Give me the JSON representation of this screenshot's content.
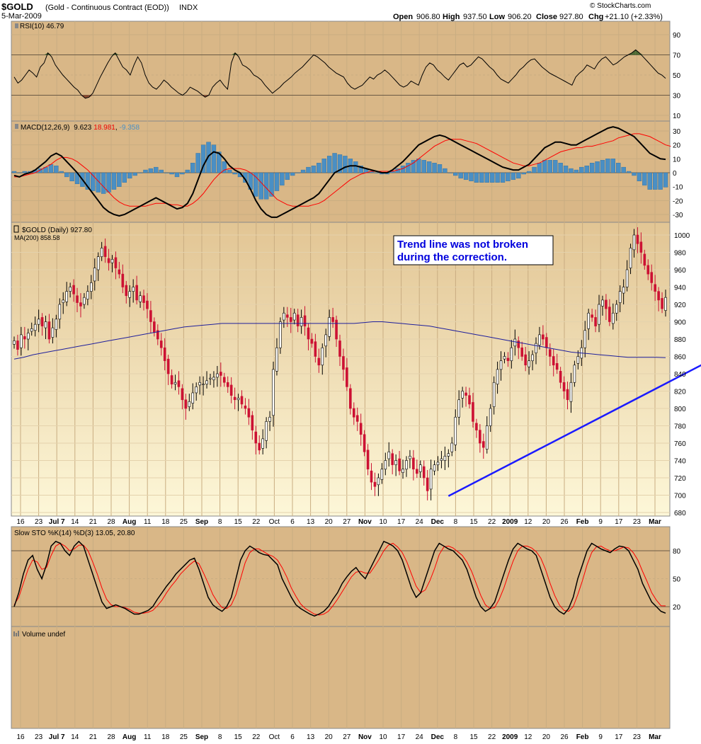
{
  "header": {
    "symbol": "$GOLD",
    "name": "(Gold - Continuous Contract (EOD))",
    "exchange": "INDX",
    "date": "5-Mar-2009",
    "open_label": "Open",
    "open": "906.80",
    "high_label": "High",
    "high": "937.50",
    "low_label": "Low",
    "low": "906.20",
    "close_label": "Close",
    "close": "927.80",
    "chg_label": "Chg",
    "chg": "+21.10 (+2.33%)",
    "credit": "© StockCharts.com"
  },
  "colors": {
    "panel_bg": "#d9b787",
    "price_bg_top": "#e6cfa0",
    "price_bg_bottom": "#fbf4d2",
    "up_candle": "#ffffff",
    "down_candle": "#cc1133",
    "ma200": "#1f1f9c",
    "trendline": "#1a1aff",
    "macd_line": "#000000",
    "signal_line": "#ff0000",
    "histogram": "#4a8fc4",
    "rsi_overbought_fill": "#4d6b35",
    "rsi_oversold_fill": "#8a4a30"
  },
  "chart_data": {
    "type": "candlestick",
    "x_tick_labels": [
      "16",
      "23",
      "Jul 7",
      "14",
      "21",
      "28",
      "Aug",
      "11",
      "18",
      "25",
      "Sep",
      "8",
      "15",
      "22",
      "Oct",
      "6",
      "13",
      "20",
      "27",
      "Nov",
      "10",
      "17",
      "24",
      "Dec",
      "8",
      "15",
      "22",
      "2009",
      "12",
      "20",
      "26",
      "Feb",
      "9",
      "17",
      "23",
      "Mar"
    ],
    "price": {
      "legend": "$GOLD (Daily) 927.80",
      "ma_legend": "MA(200) 858.58",
      "y_ticks": [
        680,
        700,
        720,
        740,
        760,
        780,
        800,
        820,
        840,
        860,
        880,
        900,
        920,
        940,
        960,
        980,
        1000
      ],
      "ylim": [
        672,
        1012
      ],
      "closes": [
        878,
        868,
        885,
        880,
        887,
        892,
        897,
        903,
        895,
        900,
        880,
        893,
        903,
        920,
        925,
        935,
        940,
        932,
        922,
        918,
        928,
        935,
        945,
        962,
        975,
        985,
        975,
        968,
        972,
        962,
        955,
        940,
        930,
        935,
        940,
        925,
        930,
        922,
        915,
        900,
        888,
        880,
        870,
        855,
        840,
        828,
        830,
        825,
        810,
        800,
        808,
        818,
        825,
        830,
        828,
        832,
        835,
        836,
        840,
        838,
        830,
        825,
        815,
        810,
        812,
        805,
        800,
        790,
        775,
        760,
        752,
        765,
        785,
        790,
        845,
        870,
        900,
        910,
        905,
        900,
        910,
        895,
        905,
        895,
        880,
        875,
        860,
        850,
        870,
        885,
        905,
        900,
        880,
        860,
        845,
        825,
        800,
        790,
        785,
        770,
        750,
        730,
        715,
        710,
        720,
        730,
        740,
        750,
        735,
        740,
        728,
        730,
        740,
        745,
        730,
        725,
        735,
        720,
        705,
        730,
        735,
        738,
        742,
        745,
        748,
        760,
        790,
        810,
        820,
        815,
        805,
        785,
        775,
        760,
        755,
        780,
        800,
        830,
        845,
        855,
        860,
        855,
        870,
        880,
        870,
        860,
        850,
        855,
        862,
        875,
        885,
        880,
        870,
        860,
        850,
        845,
        830,
        820,
        810,
        830,
        850,
        860,
        870,
        890,
        910,
        905,
        895,
        920,
        925,
        915,
        900,
        910,
        920,
        935,
        940,
        960,
        985,
        1000,
        990,
        980,
        965,
        955,
        945,
        935,
        925,
        915,
        928
      ],
      "ma200": [
        857,
        859,
        862,
        864,
        866,
        868,
        870,
        872,
        874,
        876,
        878,
        880,
        882,
        884,
        886,
        888,
        890,
        892,
        894,
        895,
        896,
        897,
        898,
        898,
        898,
        898,
        898,
        898,
        898,
        898,
        898,
        898,
        898,
        898,
        898,
        898,
        898,
        899,
        900,
        900,
        899,
        898,
        897,
        896,
        895,
        893,
        891,
        889,
        887,
        885,
        883,
        881,
        879,
        877,
        875,
        873,
        871,
        869,
        867,
        865,
        864,
        863,
        862,
        861,
        860,
        859,
        859,
        859,
        859,
        858.58
      ],
      "annotation": "Trend line was not broken during the correction.",
      "trendline": {
        "from": [
          124,
          699
        ],
        "to": [
          212,
          883
        ]
      }
    },
    "rsi": {
      "legend": "RSI(10) 46.79",
      "y_ticks": [
        10,
        30,
        50,
        70,
        90
      ],
      "overbought": 70,
      "oversold": 30,
      "values": [
        48,
        42,
        45,
        50,
        55,
        52,
        48,
        58,
        62,
        72,
        68,
        60,
        55,
        50,
        46,
        42,
        38,
        35,
        30,
        27,
        28,
        32,
        40,
        48,
        55,
        62,
        68,
        72,
        65,
        58,
        55,
        50,
        60,
        68,
        62,
        50,
        42,
        38,
        36,
        40,
        45,
        42,
        38,
        35,
        32,
        30,
        33,
        38,
        36,
        34,
        31,
        28,
        30,
        38,
        42,
        45,
        40,
        36,
        62,
        72,
        68,
        60,
        58,
        55,
        50,
        48,
        45,
        40,
        36,
        32,
        35,
        38,
        42,
        45,
        48,
        52,
        55,
        58,
        62,
        66,
        70,
        68,
        65,
        62,
        58,
        55,
        52,
        50,
        48,
        42,
        38,
        36,
        38,
        40,
        44,
        48,
        46,
        50,
        52,
        55,
        52,
        48,
        44,
        40,
        38,
        40,
        44,
        42,
        40,
        50,
        58,
        62,
        60,
        55,
        52,
        48,
        45,
        50,
        55,
        60,
        62,
        58,
        60,
        64,
        68,
        66,
        62,
        58,
        55,
        50,
        46,
        44,
        42,
        46,
        50,
        55,
        58,
        62,
        65,
        66,
        62,
        58,
        55,
        52,
        50,
        48,
        46,
        44,
        42,
        40,
        48,
        52,
        55,
        60,
        58,
        56,
        62,
        66,
        68,
        64,
        60,
        62,
        65,
        68,
        70,
        72,
        75,
        72,
        68,
        64,
        60,
        56,
        52,
        50,
        46.79
      ]
    },
    "macd": {
      "legend_prefix": "MACD(12,26,9)",
      "macd_value": "9.623",
      "signal_value": "18.981",
      "hist_value": "-9.358",
      "y_ticks": [
        -30,
        -20,
        -10,
        0,
        10,
        20,
        30
      ],
      "macd": [
        -2,
        -3,
        -1,
        0,
        2,
        5,
        8,
        12,
        14,
        12,
        8,
        4,
        0,
        -5,
        -10,
        -15,
        -20,
        -25,
        -28,
        -30,
        -31,
        -30,
        -28,
        -26,
        -24,
        -22,
        -20,
        -18,
        -20,
        -22,
        -24,
        -26,
        -25,
        -22,
        -15,
        -5,
        5,
        12,
        15,
        14,
        10,
        5,
        2,
        0,
        -5,
        -12,
        -20,
        -26,
        -30,
        -32,
        -32,
        -30,
        -28,
        -26,
        -24,
        -22,
        -20,
        -18,
        -15,
        -10,
        -5,
        0,
        2,
        4,
        5,
        5,
        4,
        3,
        2,
        1,
        0,
        0,
        2,
        5,
        8,
        12,
        16,
        20,
        22,
        24,
        26,
        27,
        26,
        24,
        22,
        20,
        18,
        16,
        14,
        12,
        10,
        8,
        6,
        4,
        3,
        2,
        2,
        4,
        6,
        10,
        14,
        18,
        20,
        22,
        22,
        21,
        20,
        20,
        22,
        24,
        26,
        28,
        30,
        32,
        33,
        32,
        30,
        28,
        26,
        22,
        18,
        14,
        12,
        10,
        9.623
      ],
      "signal": [
        -3,
        -3,
        -2,
        -1,
        0,
        2,
        4,
        6,
        9,
        11,
        11,
        10,
        8,
        5,
        2,
        -2,
        -6,
        -10,
        -14,
        -18,
        -21,
        -23,
        -24,
        -24,
        -24,
        -24,
        -23,
        -22,
        -22,
        -22,
        -23,
        -23,
        -24,
        -24,
        -22,
        -19,
        -15,
        -10,
        -5,
        -1,
        2,
        3,
        3,
        3,
        2,
        0,
        -3,
        -7,
        -11,
        -15,
        -19,
        -21,
        -23,
        -24,
        -24,
        -24,
        -24,
        -23,
        -22,
        -20,
        -17,
        -14,
        -11,
        -8,
        -5,
        -3,
        -1,
        0,
        1,
        1,
        1,
        1,
        1,
        2,
        3,
        5,
        7,
        10,
        13,
        16,
        19,
        21,
        23,
        24,
        24,
        24,
        23,
        22,
        21,
        19,
        17,
        15,
        13,
        11,
        9,
        7,
        6,
        5,
        5,
        6,
        7,
        9,
        11,
        13,
        15,
        16,
        17,
        18,
        18,
        19,
        19,
        20,
        21,
        22,
        23,
        25,
        26,
        27,
        28,
        28,
        27,
        26,
        24,
        22,
        20,
        18.981
      ]
    },
    "stochastic": {
      "legend": "Slow STO %K(14) %D(3) 13.05, 20.80",
      "y_ticks": [
        20,
        50,
        80
      ],
      "k": [
        20,
        35,
        55,
        70,
        75,
        60,
        50,
        65,
        85,
        90,
        88,
        80,
        75,
        85,
        90,
        85,
        70,
        55,
        40,
        25,
        18,
        20,
        22,
        20,
        18,
        15,
        12,
        12,
        14,
        16,
        20,
        28,
        35,
        42,
        48,
        55,
        60,
        65,
        70,
        72,
        60,
        45,
        30,
        22,
        18,
        15,
        20,
        30,
        50,
        70,
        80,
        85,
        82,
        78,
        76,
        75,
        70,
        65,
        50,
        40,
        30,
        22,
        18,
        15,
        12,
        10,
        12,
        15,
        20,
        28,
        35,
        45,
        52,
        58,
        62,
        55,
        50,
        60,
        70,
        80,
        90,
        88,
        85,
        80,
        70,
        55,
        40,
        30,
        35,
        50,
        65,
        80,
        88,
        85,
        82,
        80,
        75,
        70,
        60,
        45,
        30,
        20,
        15,
        18,
        25,
        40,
        55,
        70,
        82,
        88,
        85,
        82,
        80,
        75,
        60,
        45,
        30,
        20,
        15,
        12,
        18,
        30,
        50,
        65,
        80,
        88,
        85,
        82,
        80,
        78,
        82,
        85,
        84,
        80,
        70,
        60,
        45,
        35,
        25,
        20,
        15,
        13.05
      ],
      "d": [
        22,
        30,
        45,
        60,
        70,
        68,
        60,
        62,
        75,
        85,
        88,
        85,
        80,
        82,
        86,
        86,
        80,
        68,
        55,
        40,
        28,
        22,
        20,
        20,
        19,
        17,
        14,
        13,
        13,
        14,
        16,
        21,
        27,
        35,
        42,
        48,
        55,
        60,
        65,
        69,
        66,
        56,
        45,
        33,
        25,
        19,
        18,
        22,
        33,
        50,
        67,
        78,
        82,
        82,
        79,
        76,
        74,
        70,
        62,
        52,
        40,
        31,
        23,
        18,
        15,
        12,
        11,
        12,
        15,
        21,
        28,
        36,
        44,
        52,
        57,
        58,
        56,
        56,
        63,
        71,
        80,
        86,
        88,
        84,
        78,
        68,
        55,
        42,
        35,
        38,
        48,
        61,
        76,
        84,
        85,
        83,
        79,
        75,
        68,
        58,
        45,
        32,
        22,
        18,
        19,
        28,
        40,
        55,
        69,
        80,
        85,
        85,
        83,
        79,
        72,
        60,
        45,
        32,
        22,
        16,
        15,
        20,
        33,
        48,
        65,
        78,
        84,
        85,
        82,
        80,
        80,
        82,
        84,
        83,
        78,
        70,
        58,
        47,
        35,
        27,
        21,
        20.8
      ]
    },
    "volume": {
      "legend": "Volume undef"
    }
  }
}
